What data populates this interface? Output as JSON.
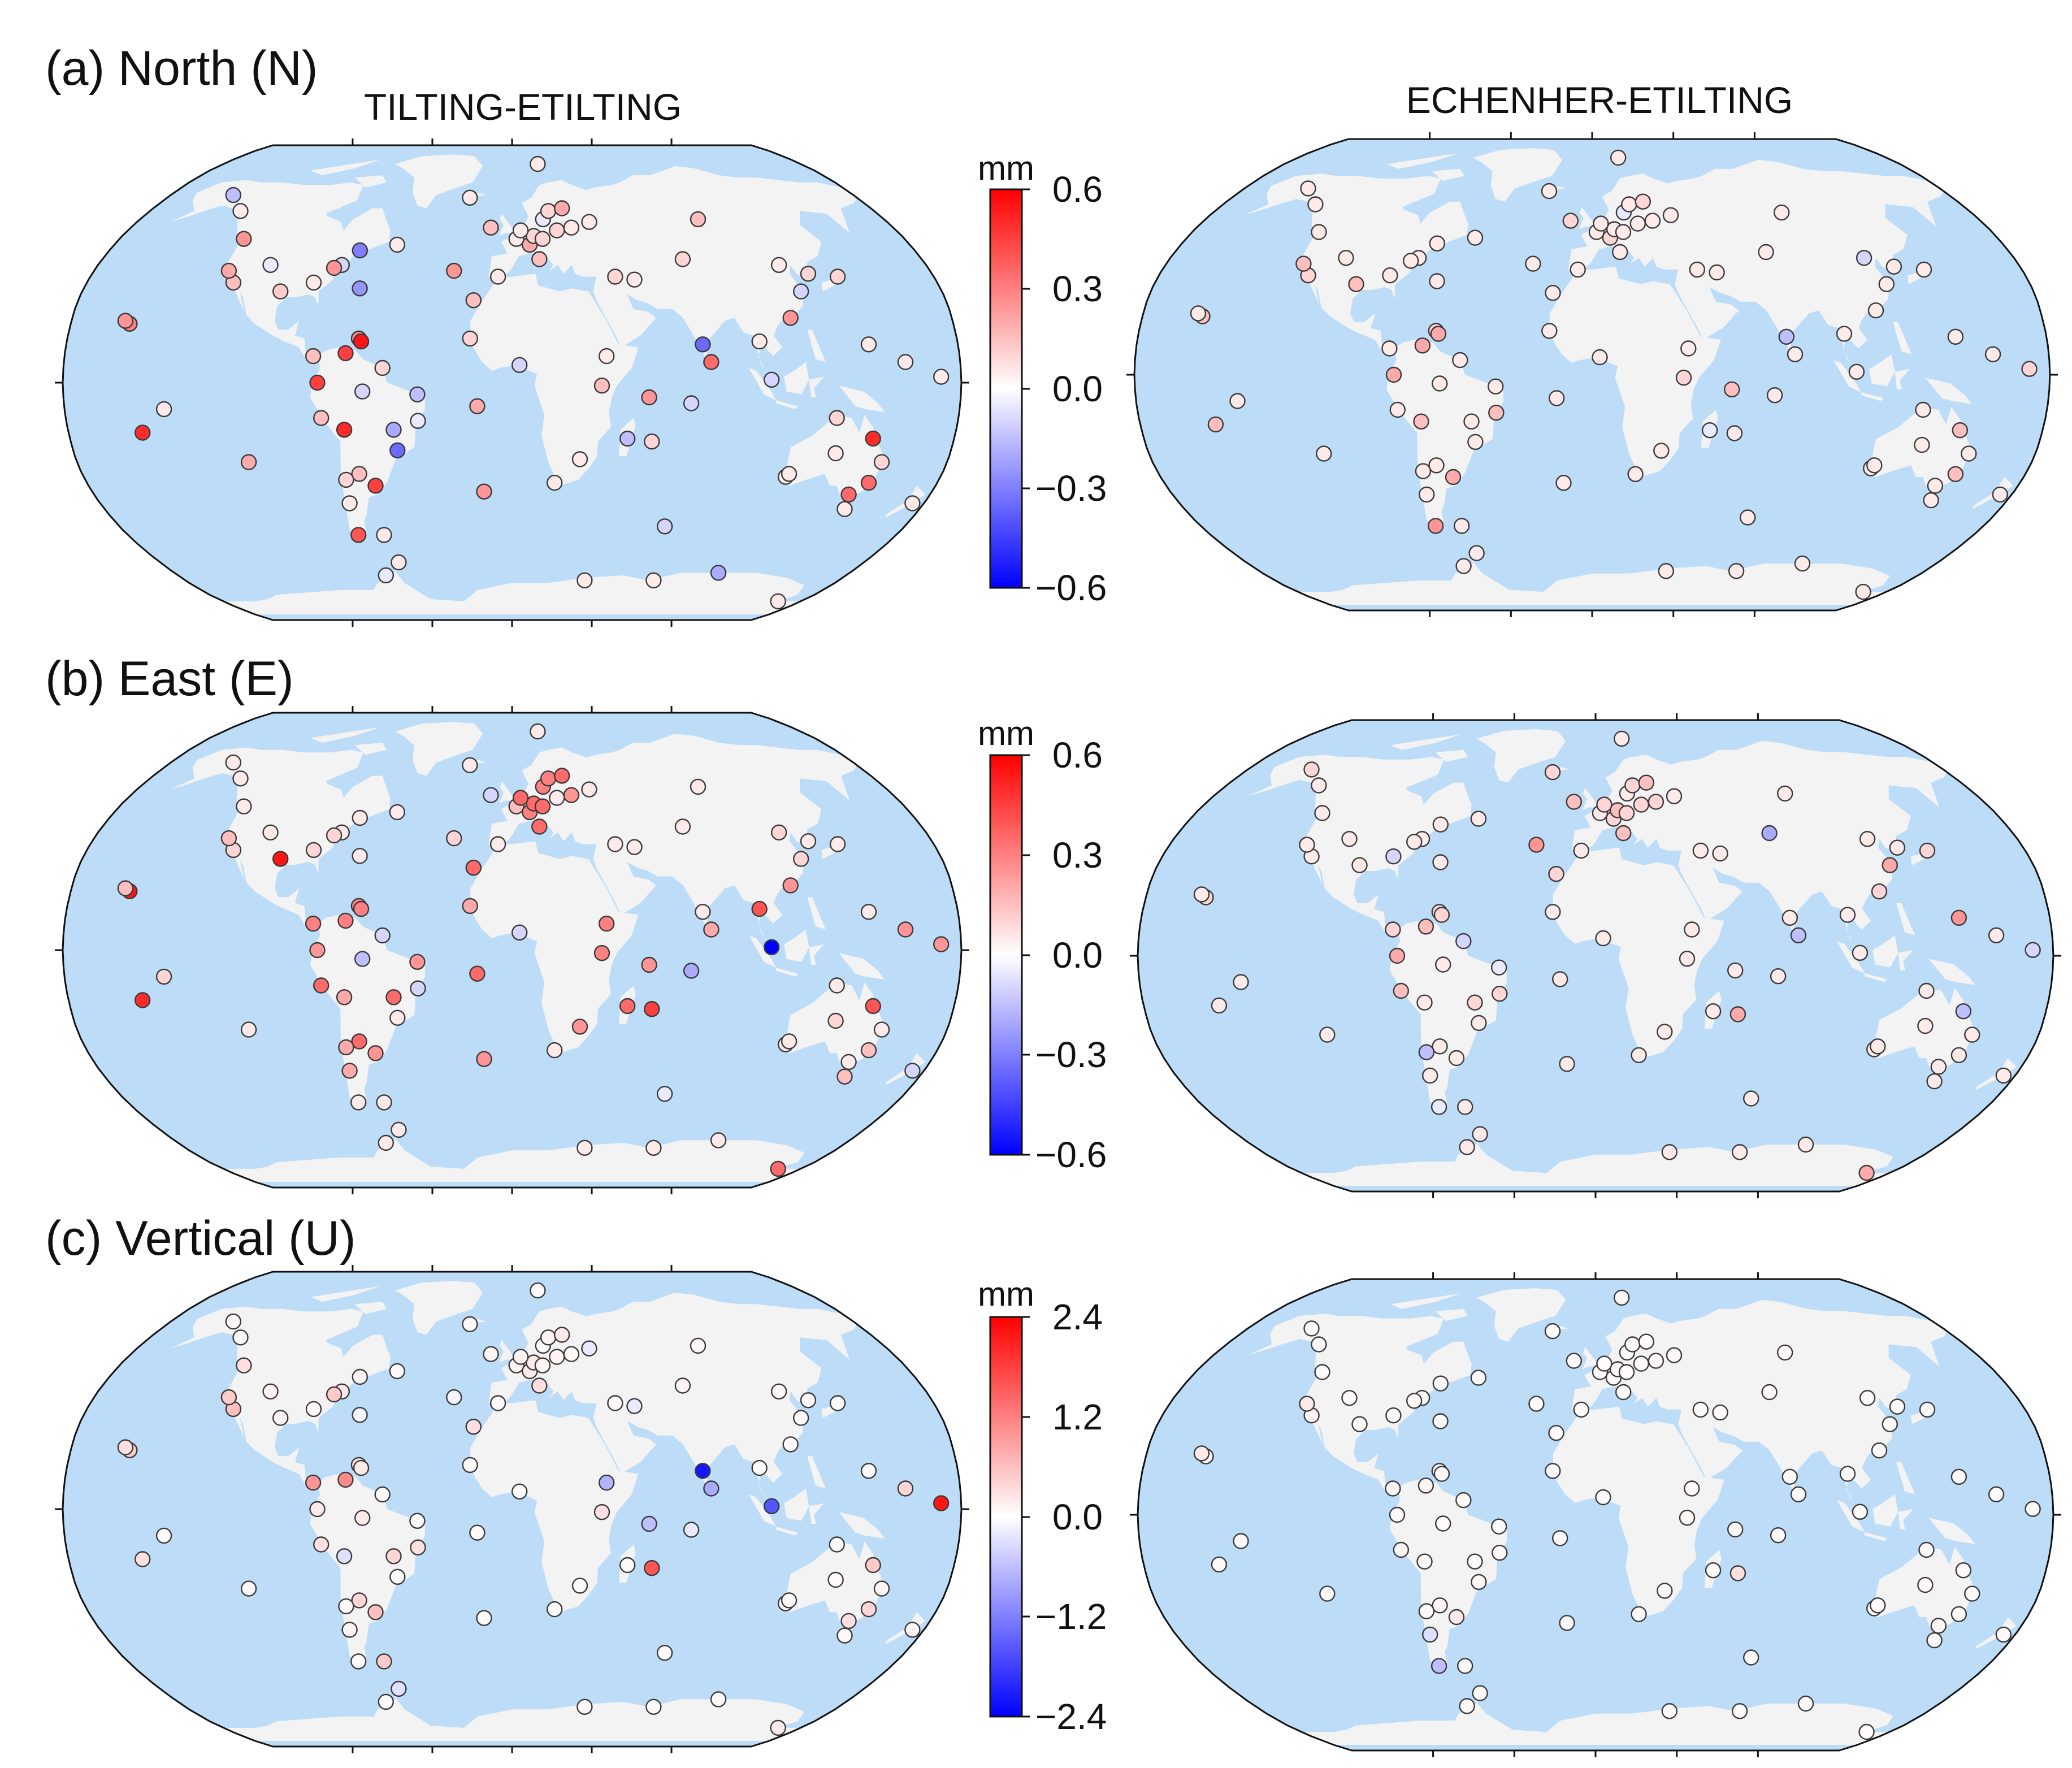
{
  "panels": [
    {
      "label": "(a) North (N)",
      "colorbar": {
        "unit": "mm",
        "ticks": [
          "0.6",
          "0.3",
          "0.0",
          "−0.3",
          "−0.6"
        ],
        "range": [
          -0.6,
          0.6
        ]
      }
    },
    {
      "label": "(b) East (E)",
      "colorbar": {
        "unit": "mm",
        "ticks": [
          "0.6",
          "0.3",
          "0.0",
          "−0.3",
          "−0.6"
        ],
        "range": [
          -0.6,
          0.6
        ]
      }
    },
    {
      "label": "(c) Vertical (U)",
      "colorbar": {
        "unit": "mm",
        "ticks": [
          "2.4",
          "1.2",
          "0.0",
          "−1.2",
          "−2.4"
        ],
        "range": [
          -2.4,
          2.4
        ]
      }
    }
  ],
  "columns": [
    "TILTING-ETILTING",
    "ECHENHER-ETILTING"
  ],
  "colors": {
    "ocean": "#bcdcf7",
    "land": "#f3f3f3",
    "positive": "#ff0000",
    "negative": "#0000ff",
    "zero": "#ffffff"
  },
  "chart_data": {
    "type": "scatter",
    "projection": "Robinson (world)",
    "colormap": "blue-white-red diverging",
    "sites": [
      {
        "lon": -74,
        "lat": 40
      },
      {
        "lon": -77,
        "lat": 39
      },
      {
        "lon": -84,
        "lat": 34
      },
      {
        "lon": -97,
        "lat": 31
      },
      {
        "lon": -105,
        "lat": 40
      },
      {
        "lon": -118,
        "lat": 34
      },
      {
        "lon": -122,
        "lat": 38
      },
      {
        "lon": -123,
        "lat": 49
      },
      {
        "lon": -135,
        "lat": 59
      },
      {
        "lon": -147,
        "lat": 65
      },
      {
        "lon": -68,
        "lat": 45
      },
      {
        "lon": -64,
        "lat": 32
      },
      {
        "lon": -52,
        "lat": 47
      },
      {
        "lon": -156,
        "lat": 20
      },
      {
        "lon": -158,
        "lat": 21
      },
      {
        "lon": -150,
        "lat": -17
      },
      {
        "lon": -140,
        "lat": -9
      },
      {
        "lon": -109,
        "lat": -27
      },
      {
        "lon": -80,
        "lat": 9
      },
      {
        "lon": -67,
        "lat": 10
      },
      {
        "lon": -78,
        "lat": 0
      },
      {
        "lon": -62,
        "lat": 15
      },
      {
        "lon": -61,
        "lat": 14
      },
      {
        "lon": -52,
        "lat": 5
      },
      {
        "lon": -60,
        "lat": -3
      },
      {
        "lon": -77,
        "lat": -12
      },
      {
        "lon": -68,
        "lat": -16
      },
      {
        "lon": -48,
        "lat": -16
      },
      {
        "lon": -38,
        "lat": -4
      },
      {
        "lon": -64,
        "lat": -31
      },
      {
        "lon": -70,
        "lat": -33
      },
      {
        "lon": -58,
        "lat": -35
      },
      {
        "lon": -71,
        "lat": -41
      },
      {
        "lon": -72,
        "lat": -52
      },
      {
        "lon": -60,
        "lat": -52
      },
      {
        "lon": -58,
        "lat": -62
      },
      {
        "lon": -47,
        "lat": -23
      },
      {
        "lon": -38,
        "lat": -13
      },
      {
        "lon": -14,
        "lat": -8
      },
      {
        "lon": -12,
        "lat": -37
      },
      {
        "lon": -16,
        "lat": 28
      },
      {
        "lon": -25,
        "lat": 38
      },
      {
        "lon": -22,
        "lat": 64
      },
      {
        "lon": -10,
        "lat": 53
      },
      {
        "lon": 2,
        "lat": 49
      },
      {
        "lon": 8,
        "lat": 47
      },
      {
        "lon": 12,
        "lat": 42
      },
      {
        "lon": 10,
        "lat": 50
      },
      {
        "lon": 15,
        "lat": 56
      },
      {
        "lon": 18,
        "lat": 59
      },
      {
        "lon": 25,
        "lat": 60
      },
      {
        "lon": 28,
        "lat": 53
      },
      {
        "lon": 21,
        "lat": 52
      },
      {
        "lon": 16,
        "lat": 78
      },
      {
        "lon": 14,
        "lat": 49
      },
      {
        "lon": 4,
        "lat": 52
      },
      {
        "lon": 37,
        "lat": 55
      },
      {
        "lon": -6,
        "lat": 36
      },
      {
        "lon": -17,
        "lat": 15
      },
      {
        "lon": 3,
        "lat": 6
      },
      {
        "lon": 18,
        "lat": -34
      },
      {
        "lon": 28,
        "lat": -26
      },
      {
        "lon": 36,
        "lat": -1
      },
      {
        "lon": 38,
        "lat": 9
      },
      {
        "lon": 47,
        "lat": -19
      },
      {
        "lon": 57,
        "lat": -20
      },
      {
        "lon": 55,
        "lat": -5
      },
      {
        "lon": 72,
        "lat": -7
      },
      {
        "lon": 80,
        "lat": 7
      },
      {
        "lon": 77,
        "lat": 13
      },
      {
        "lon": 70,
        "lat": -49
      },
      {
        "lon": 44,
        "lat": 36
      },
      {
        "lon": 52,
        "lat": 35
      },
      {
        "lon": 75,
        "lat": 42
      },
      {
        "lon": 90,
        "lat": 56
      },
      {
        "lon": 104,
        "lat": 1
      },
      {
        "lon": 100,
        "lat": 14
      },
      {
        "lon": 114,
        "lat": 22
      },
      {
        "lon": 121,
        "lat": 31
      },
      {
        "lon": 116,
        "lat": 40
      },
      {
        "lon": 127,
        "lat": 37
      },
      {
        "lon": 139,
        "lat": 36
      },
      {
        "lon": 144,
        "lat": 13
      },
      {
        "lon": 158,
        "lat": 7
      },
      {
        "lon": 172,
        "lat": 2
      },
      {
        "lon": 147,
        "lat": -19
      },
      {
        "lon": 145,
        "lat": -38
      },
      {
        "lon": 153,
        "lat": -27
      },
      {
        "lon": 151,
        "lat": -34
      },
      {
        "lon": 115,
        "lat": -32
      },
      {
        "lon": 116,
        "lat": -31
      },
      {
        "lon": 133,
        "lat": -24
      },
      {
        "lon": 131,
        "lat": -12
      },
      {
        "lon": 147,
        "lat": -43
      },
      {
        "lon": 175,
        "lat": -41
      },
      {
        "lon": 166,
        "lat": -78
      },
      {
        "lon": 78,
        "lat": -69
      },
      {
        "lon": 110,
        "lat": -66
      },
      {
        "lon": 40,
        "lat": -69
      },
      {
        "lon": -68,
        "lat": -67
      }
    ],
    "values": {
      "north_tilting": [
        -0.1,
        0.25,
        0.05,
        0.12,
        -0.05,
        0.15,
        0.2,
        0.25,
        0.05,
        -0.15,
        -0.3,
        -0.25,
        0.05,
        0.3,
        0.25,
        0.5,
        0.05,
        0.2,
        0.15,
        0.45,
        0.45,
        0.3,
        0.55,
        0.1,
        -0.1,
        0.15,
        0.5,
        -0.2,
        -0.15,
        0.15,
        0.1,
        0.45,
        0.05,
        0.4,
        0.05,
        0.05,
        -0.35,
        -0.05,
        0.2,
        0.25,
        0.15,
        0.25,
        0.05,
        0.15,
        0.05,
        0.2,
        0.15,
        0.1,
        -0.05,
        0.1,
        0.2,
        0.05,
        0.1,
        0.05,
        0.1,
        0.05,
        0.05,
        0.05,
        0.1,
        -0.1,
        0.05,
        0.05,
        0.15,
        0.05,
        -0.15,
        0.1,
        0.25,
        -0.1,
        0.35,
        -0.35,
        -0.1,
        0.1,
        0.05,
        0.1,
        0.15,
        -0.1,
        0.05,
        0.25,
        -0.1,
        0.05,
        0.1,
        0.1,
        0.05,
        0.05,
        0.05,
        0.5,
        0.35,
        0.1,
        0.35,
        0.05,
        0.05,
        0.05,
        0.1,
        0.05,
        0.05,
        0.05,
        0.05,
        -0.2,
        0.05,
        -0.05
      ],
      "north_echenher": [
        0.05,
        0.05,
        0.05,
        0.15,
        0.05,
        0.1,
        0.15,
        0.05,
        0.05,
        0.05,
        0.05,
        0.05,
        0.05,
        0.15,
        0.05,
        0.15,
        0.05,
        0.05,
        0.05,
        0.2,
        0.2,
        0.1,
        0.2,
        0.05,
        0.05,
        0.05,
        0.15,
        0.05,
        0.05,
        0.05,
        0.05,
        0.2,
        0.05,
        0.25,
        0.05,
        0.05,
        0.05,
        0.15,
        0.05,
        0.05,
        0.05,
        0.05,
        0.05,
        0.1,
        0.05,
        0.1,
        0.05,
        0.05,
        -0.05,
        0.05,
        0.1,
        0.05,
        0.05,
        0.05,
        0.05,
        0.05,
        0.05,
        0.05,
        0.05,
        0.05,
        0.05,
        0.05,
        0.1,
        0.05,
        -0.05,
        0.05,
        0.15,
        0.05,
        0.05,
        -0.15,
        0.05,
        0.05,
        0.05,
        0.05,
        0.05,
        0.05,
        0.05,
        0.05,
        0.05,
        -0.1,
        0.05,
        0.05,
        0.05,
        0.05,
        0.1,
        0.15,
        0.05,
        0.05,
        0.15,
        0.05,
        0.05,
        0.05,
        0.05,
        0.05,
        0.05,
        0.05,
        0.05,
        0.05,
        0.05,
        0.05
      ],
      "east_tilting": [
        0.05,
        0.1,
        0.1,
        0.55,
        0.05,
        0.1,
        0.15,
        0.05,
        0.05,
        0.05,
        0.05,
        0.05,
        0.05,
        0.55,
        0.15,
        0.5,
        0.1,
        0.05,
        0.3,
        0.3,
        0.25,
        0.3,
        0.3,
        -0.1,
        -0.15,
        0.35,
        0.2,
        0.35,
        0.25,
        0.35,
        0.2,
        0.25,
        0.2,
        0.05,
        0.05,
        0.05,
        0.05,
        -0.1,
        0.35,
        0.25,
        0.35,
        0.1,
        0.05,
        -0.1,
        0.15,
        0.3,
        0.35,
        0.35,
        0.3,
        0.3,
        0.35,
        0.25,
        0.05,
        0.05,
        0.35,
        0.35,
        0.05,
        0.05,
        0.2,
        -0.1,
        0.05,
        0.25,
        0.3,
        0.3,
        0.35,
        0.45,
        0.25,
        -0.2,
        0.2,
        0.05,
        -0.05,
        0.05,
        0.05,
        0.05,
        0.05,
        -0.75,
        0.4,
        0.25,
        0.1,
        0.1,
        0.05,
        0.05,
        0.05,
        0.25,
        0.25,
        0.4,
        0.05,
        0.05,
        0.15,
        0.05,
        0.05,
        0.1,
        0.05,
        0.15,
        -0.1,
        0.35,
        0.05,
        0.05,
        0.05,
        0.05
      ],
      "east_echenher": [
        0.05,
        0.05,
        -0.1,
        0.05,
        0.05,
        0.05,
        0.05,
        0.05,
        0.05,
        0.1,
        0.05,
        0.05,
        0.05,
        0.1,
        0.05,
        0.05,
        0.05,
        0.05,
        0.1,
        0.15,
        0.2,
        0.1,
        0.1,
        -0.1,
        0.05,
        0.15,
        0.05,
        0.1,
        -0.05,
        0.05,
        -0.15,
        0.05,
        0.05,
        -0.05,
        0.05,
        0.05,
        0.05,
        0.1,
        0.05,
        0.05,
        0.1,
        0.25,
        0.1,
        0.15,
        0.05,
        0.1,
        0.15,
        0.15,
        0.05,
        0.1,
        0.15,
        0.1,
        0.1,
        0.05,
        0.1,
        0.1,
        0.05,
        0.05,
        0.05,
        0.05,
        0.05,
        0.05,
        0.05,
        0.05,
        0.05,
        0.2,
        0.05,
        0.05,
        -0.15,
        0.05,
        0.05,
        0.05,
        0.05,
        -0.2,
        0.05,
        0.05,
        0.05,
        0.1,
        0.2,
        0.05,
        0.05,
        0.1,
        0.25,
        0.05,
        -0.1,
        -0.15,
        0.05,
        0.05,
        0.05,
        0.05,
        0.05,
        0.05,
        0.05,
        0.05,
        0.05,
        0.2,
        0.05,
        0.05,
        0.05,
        0.05
      ],
      "up_tilting": [
        0.2,
        0.5,
        0.05,
        0.1,
        0.1,
        0.6,
        0.5,
        0.3,
        0.05,
        0.1,
        0.1,
        -0.1,
        0.05,
        0.5,
        0.3,
        0.3,
        0.05,
        0.05,
        1.0,
        1.1,
        0.2,
        0.3,
        0.2,
        0.05,
        0.2,
        0.3,
        -0.3,
        0.4,
        0.05,
        0.4,
        0.05,
        0.6,
        0.1,
        0.05,
        0.5,
        -0.3,
        0.05,
        0.3,
        0.05,
        0.05,
        0.3,
        -0.1,
        0.05,
        0.1,
        0.1,
        0.2,
        0.3,
        0.2,
        0.05,
        0.1,
        0.2,
        0.05,
        0.1,
        0.05,
        0.1,
        0.1,
        -0.2,
        0.05,
        0.05,
        0.05,
        0.05,
        0.05,
        0.3,
        -0.7,
        0.05,
        1.6,
        -0.6,
        -0.2,
        -0.8,
        -2.2,
        0.05,
        0.05,
        -0.2,
        0.1,
        0.05,
        -1.6,
        0.05,
        0.05,
        0.05,
        0.05,
        0.05,
        0.05,
        0.05,
        0.4,
        2.2,
        0.5,
        0.3,
        0.1,
        0.4,
        0.05,
        0.05,
        0.05,
        0.05,
        0.05,
        0.1,
        0.2,
        0.05,
        0.05,
        0.05,
        0.05
      ],
      "up_echenher": [
        0.05,
        0.05,
        0.05,
        0.05,
        0.05,
        0.1,
        0.2,
        0.05,
        0.05,
        0.05,
        0.05,
        0.05,
        0.05,
        0.1,
        0.2,
        0.05,
        0.05,
        0.05,
        0.1,
        0.1,
        0.05,
        0.1,
        0.05,
        0.05,
        0.05,
        0.1,
        0.05,
        0.05,
        0.05,
        0.1,
        0.05,
        0.2,
        -0.3,
        -0.6,
        0.05,
        0.05,
        0.05,
        0.05,
        0.05,
        0.05,
        0.05,
        0.05,
        0.05,
        0.05,
        0.05,
        0.05,
        0.05,
        0.1,
        0.05,
        0.05,
        0.05,
        0.05,
        0.05,
        0.05,
        0.05,
        0.05,
        0.05,
        0.05,
        0.05,
        0.05,
        0.05,
        0.05,
        0.05,
        0.05,
        0.05,
        0.3,
        0.05,
        0.05,
        0.05,
        0.05,
        0.05,
        0.05,
        0.05,
        0.05,
        0.05,
        0.05,
        0.05,
        0.05,
        0.05,
        0.05,
        0.05,
        0.05,
        0.05,
        0.05,
        0.05,
        0.05,
        0.1,
        0.05,
        0.05,
        0.05,
        0.05,
        0.05,
        0.05,
        0.05,
        0.05,
        0.05,
        0.05,
        0.05,
        0.05,
        0.05
      ]
    }
  }
}
